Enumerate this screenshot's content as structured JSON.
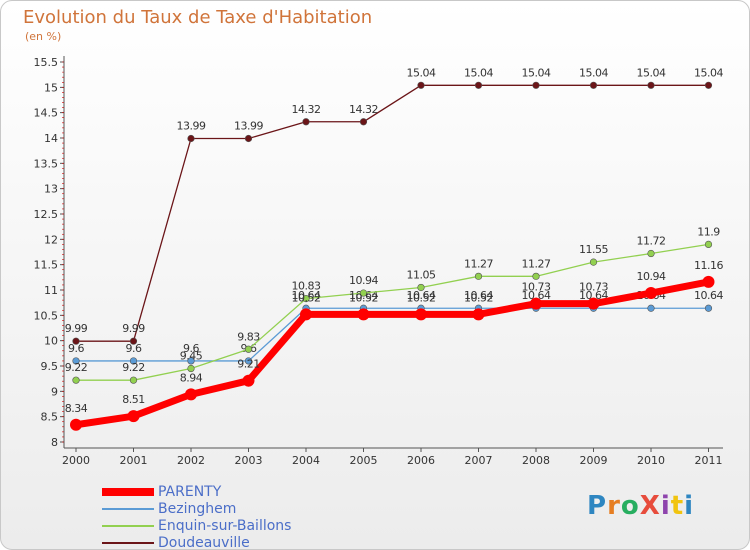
{
  "title": "Evolution du Taux de Taxe d'Habitation",
  "subtitle": "(en %)",
  "logo": {
    "text": "ProXiti",
    "colors": [
      "#2e86c1",
      "#e67e22",
      "#27ae60",
      "#e74c3c",
      "#8e44ad",
      "#f1c40f",
      "#2e86c1"
    ]
  },
  "chart_data": {
    "type": "line",
    "categories": [
      "2000",
      "2001",
      "2002",
      "2003",
      "2004",
      "2005",
      "2006",
      "2007",
      "2008",
      "2009",
      "2010",
      "2011"
    ],
    "ylim": [
      8,
      15.5
    ],
    "yticks": [
      "8",
      "8.5",
      "9",
      "9.5",
      "10",
      "10.5",
      "11",
      "11.5",
      "12",
      "12.5",
      "13",
      "13.5",
      "14",
      "14.5",
      "15",
      "15.5"
    ],
    "grid": false,
    "legend_position": "bottom-left",
    "series": [
      {
        "name": "Doudeauville",
        "color": "#6b1518",
        "values": [
          9.99,
          9.99,
          13.99,
          13.99,
          14.32,
          14.32,
          15.04,
          15.04,
          15.04,
          15.04,
          15.04,
          15.04
        ],
        "labels": [
          "9.99",
          "9.99",
          "13.99",
          "13.99",
          "14.32",
          "14.32",
          "15.04",
          "15.04",
          "15.04",
          "15.04",
          "15.04",
          "15.04"
        ]
      },
      {
        "name": "Bezinghem",
        "color": "#5b9bd5",
        "values": [
          9.6,
          9.6,
          9.6,
          9.6,
          10.64,
          10.64,
          10.64,
          10.64,
          10.64,
          10.64,
          10.64,
          10.64
        ],
        "labels": [
          "9.6",
          "9.6",
          "9.6",
          "9.6",
          "10.64",
          "10.64",
          "10.64",
          "10.64",
          "10.64",
          "10.64",
          "10.64",
          "10.64"
        ]
      },
      {
        "name": "Enquin-sur-Baillons",
        "color": "#92d050",
        "values": [
          9.22,
          9.22,
          9.45,
          9.83,
          10.83,
          10.94,
          11.05,
          11.27,
          11.27,
          11.55,
          11.72,
          11.9
        ],
        "labels": [
          "9.22",
          "9.22",
          "9.45",
          "9.83",
          "10.83",
          "10.94",
          "11.05",
          "11.27",
          "11.27",
          "11.55",
          "11.72",
          "11.9"
        ]
      },
      {
        "name": "PARENTY",
        "color": "#ff0000",
        "values": [
          8.34,
          8.51,
          8.94,
          9.21,
          10.52,
          10.52,
          10.52,
          10.52,
          10.73,
          10.73,
          10.94,
          11.16
        ],
        "labels": [
          "8.34",
          "8.51",
          "8.94",
          "9.21",
          "10.52",
          "10.52",
          "10.52",
          "10.52",
          "10.73",
          "10.73",
          "10.94",
          "11.16"
        ]
      }
    ],
    "legend": [
      {
        "name": "PARENTY",
        "color": "#ff0000"
      },
      {
        "name": "Bezinghem",
        "color": "#5b9bd5"
      },
      {
        "name": "Enquin-sur-Baillons",
        "color": "#92d050"
      },
      {
        "name": "Doudeauville",
        "color": "#6b1518"
      }
    ]
  }
}
